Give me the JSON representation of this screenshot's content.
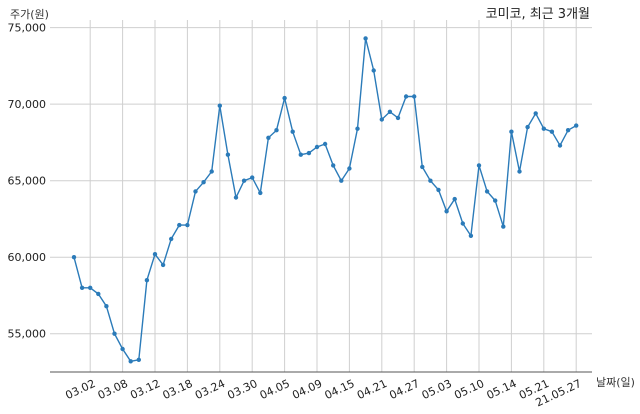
{
  "chart_data": {
    "type": "line",
    "title": "코미코, 최근 3개월",
    "ylabel": "주가(원)",
    "xlabel": "날짜(일)",
    "ylim": [
      52500,
      75500
    ],
    "y_ticks": [
      55000,
      60000,
      65000,
      70000,
      75000
    ],
    "y_tick_labels": [
      "55,000",
      "60,000",
      "65,000",
      "70,000",
      "75,000"
    ],
    "x_tick_labels": [
      "03.02",
      "03.08",
      "03.12",
      "03.18",
      "03.24",
      "03.30",
      "04.05",
      "04.09",
      "04.15",
      "04.21",
      "04.27",
      "05.03",
      "05.10",
      "05.14",
      "05.21",
      "21.05.27"
    ],
    "x_tick_positions": [
      2,
      6,
      10,
      14,
      18,
      22,
      26,
      30,
      34,
      38,
      42,
      46,
      50,
      54,
      58,
      62
    ],
    "grid": true,
    "color": "#2b7bb9",
    "series": [
      {
        "values": [
          60000,
          58000,
          58000,
          57600,
          56800,
          55000,
          54000,
          53200,
          53300,
          58500,
          60200,
          59500,
          61200,
          62100,
          62100,
          64300,
          64900,
          65600,
          69900,
          66700,
          63900,
          65000,
          65200,
          64200,
          67800,
          68300,
          70400,
          68200,
          66700,
          66800,
          67200,
          67400,
          66000,
          65000,
          65800,
          68400,
          74300,
          72200,
          69000,
          69500,
          69100,
          70500,
          70500,
          65900,
          65000,
          64400,
          63000,
          63800,
          62200,
          61400,
          66000,
          64300,
          63700,
          62000,
          68200,
          65600,
          68500,
          69400,
          68400,
          68200,
          67300,
          68300,
          68600
        ]
      }
    ]
  }
}
